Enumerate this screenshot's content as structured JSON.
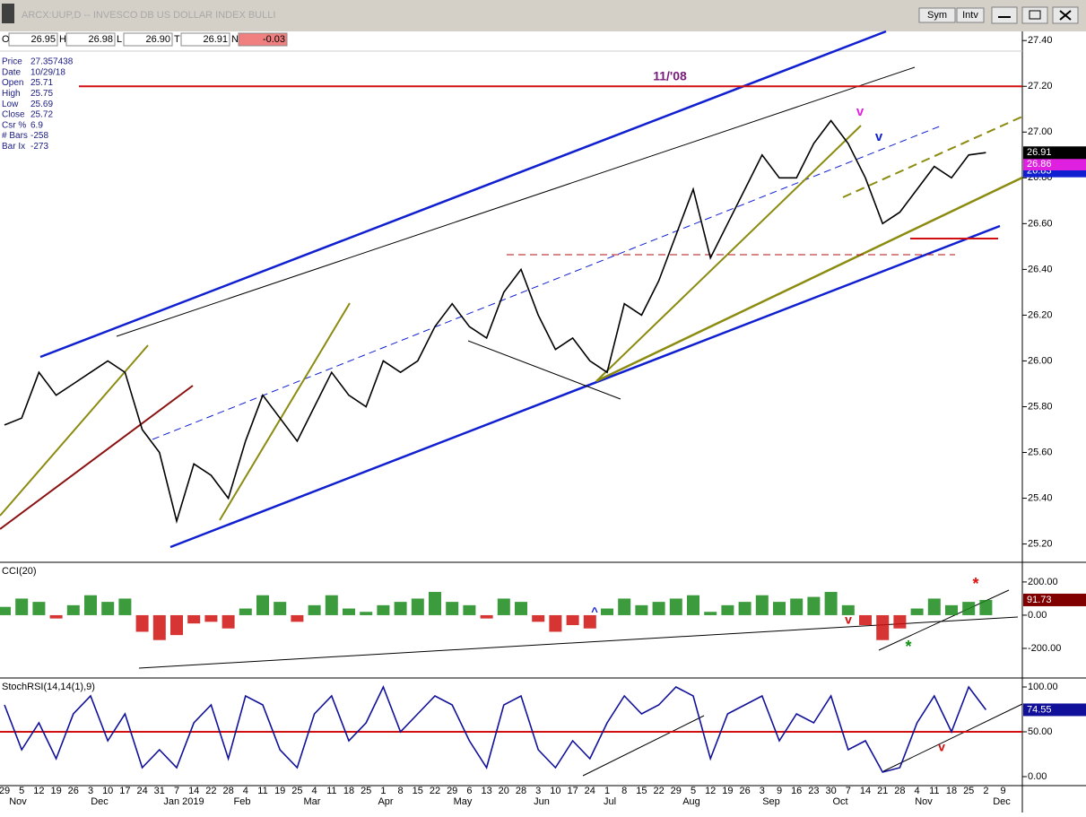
{
  "header": {
    "title": "ARCX:UUP,D -- INVESCO DB US DOLLAR INDEX BULLI",
    "buttons": [
      "Sym",
      "Intv"
    ],
    "ohlc": [
      {
        "key": "O",
        "value": "26.95"
      },
      {
        "key": "H",
        "value": "26.98"
      },
      {
        "key": "L",
        "value": "26.90"
      },
      {
        "key": "T",
        "value": "26.91"
      },
      {
        "key": "N",
        "value": "-0.03"
      }
    ],
    "info": [
      [
        "Price",
        "27.357438"
      ],
      [
        "Date",
        "10/29/18"
      ],
      [
        "Open",
        "25.71"
      ],
      [
        "High",
        "25.75"
      ],
      [
        "Low",
        "25.69"
      ],
      [
        "Close",
        "25.72"
      ],
      [
        "Csr %",
        "6.9"
      ],
      [
        "# Bars",
        "-258"
      ],
      [
        "Bar Ix",
        "-273"
      ]
    ]
  },
  "chart_data": [
    {
      "type": "line",
      "color": "#000000",
      "categories": [
        "29",
        "5",
        "12",
        "19",
        "26",
        "3",
        "10",
        "17",
        "24",
        "31",
        "7",
        "14",
        "22",
        "28",
        "4",
        "11",
        "19",
        "25",
        "4",
        "11",
        "18",
        "25",
        "1",
        "8",
        "15",
        "22",
        "29",
        "6",
        "13",
        "20",
        "28",
        "3",
        "10",
        "17",
        "24",
        "1",
        "8",
        "15",
        "22",
        "29",
        "5",
        "12",
        "19",
        "26",
        "3",
        "9",
        "16",
        "23",
        "30",
        "7",
        "14",
        "21",
        "28",
        "4",
        "11",
        "18",
        "25",
        "2",
        "9"
      ],
      "months": [
        "Nov",
        "Dec",
        "Jan 2019",
        "Feb",
        "Mar",
        "Apr",
        "May",
        "Jun",
        "Jul",
        "Aug",
        "Sep",
        "Oct",
        "Nov",
        "Dec"
      ],
      "values": [
        25.72,
        25.75,
        25.95,
        25.85,
        25.9,
        25.95,
        26.0,
        25.95,
        25.7,
        25.6,
        25.3,
        25.55,
        25.5,
        25.4,
        25.65,
        25.85,
        25.75,
        25.65,
        25.8,
        25.95,
        25.85,
        25.8,
        26.0,
        25.95,
        26.0,
        26.15,
        26.25,
        26.15,
        26.1,
        26.3,
        26.4,
        26.2,
        26.05,
        26.1,
        26.0,
        25.95,
        26.25,
        26.2,
        26.35,
        26.55,
        26.75,
        26.45,
        26.6,
        26.75,
        26.9,
        26.8,
        26.8,
        26.95,
        27.05,
        26.95,
        26.8,
        26.6,
        26.65,
        26.75,
        26.85,
        26.8,
        26.9,
        26.91,
        null
      ],
      "ylim": [
        25.12,
        27.44
      ],
      "yticks": [
        {
          "value": 25.2,
          "label": "25.20"
        },
        {
          "value": 25.4,
          "label": "25.40"
        },
        {
          "value": 25.6,
          "label": "25.60"
        },
        {
          "value": 25.8,
          "label": "25.80"
        },
        {
          "value": 26.0,
          "label": "26.00"
        },
        {
          "value": 26.2,
          "label": "26.20"
        },
        {
          "value": 26.4,
          "label": "26.40"
        },
        {
          "value": 26.6,
          "label": "26.60"
        },
        {
          "value": 26.8,
          "label": "26.80"
        },
        {
          "value": 27.0,
          "label": "27.00"
        },
        {
          "value": 27.2,
          "label": "27.20"
        },
        {
          "value": 27.4,
          "label": "27.40"
        }
      ],
      "hline": 27.2,
      "hline_color": "#d01010",
      "last_values": [
        {
          "value": 26.91,
          "color": "#000000"
        },
        {
          "value": 26.86,
          "color": "#e020e0"
        },
        {
          "value": 26.83,
          "color": "#1020d0"
        }
      ],
      "annotations": [
        "11/'08",
        "v",
        "v"
      ]
    },
    {
      "type": "bar",
      "title": "CCI(20)",
      "up_color": "#1a8a1a",
      "down_color": "#d01010",
      "values": [
        50,
        100,
        80,
        -20,
        60,
        120,
        80,
        100,
        -100,
        -150,
        -120,
        -50,
        -40,
        -80,
        40,
        120,
        80,
        -40,
        60,
        120,
        40,
        20,
        60,
        80,
        100,
        140,
        80,
        60,
        -20,
        100,
        80,
        -40,
        -100,
        -60,
        -80,
        40,
        100,
        60,
        80,
        100,
        120,
        20,
        60,
        80,
        120,
        80,
        100,
        110,
        140,
        60,
        -60,
        -150,
        -80,
        40,
        100,
        60,
        80,
        91.73,
        null
      ],
      "ylim": [
        -373,
        313
      ],
      "yticks": [
        {
          "value": 200,
          "label": "200.00"
        },
        {
          "value": 0,
          "label": "0.00"
        },
        {
          "value": -200,
          "label": "-200.00"
        }
      ],
      "last_value": 91.73,
      "last_color": "#800000",
      "annotations": [
        "^",
        "v",
        "*",
        "*"
      ]
    },
    {
      "type": "line",
      "title": "StochRSI(14,14(1),9)",
      "color": "#10109a",
      "values": [
        80,
        30,
        60,
        20,
        70,
        90,
        40,
        70,
        10,
        30,
        10,
        60,
        80,
        20,
        90,
        80,
        30,
        10,
        70,
        90,
        40,
        60,
        100,
        50,
        70,
        90,
        80,
        40,
        10,
        80,
        90,
        30,
        10,
        40,
        20,
        60,
        90,
        70,
        80,
        100,
        90,
        20,
        70,
        80,
        90,
        40,
        70,
        60,
        90,
        30,
        40,
        5,
        10,
        60,
        90,
        50,
        100,
        74.55,
        null
      ],
      "ylim": [
        -10,
        109
      ],
      "yticks": [
        {
          "value": 100,
          "label": "100.00"
        },
        {
          "value": 50,
          "label": "50.00"
        },
        {
          "value": 0,
          "label": "0.00"
        }
      ],
      "hline": 50,
      "hline_color": "#d01010",
      "last_value": 74.55,
      "last_color": "#10109a",
      "annotations": [
        "v"
      ]
    }
  ]
}
